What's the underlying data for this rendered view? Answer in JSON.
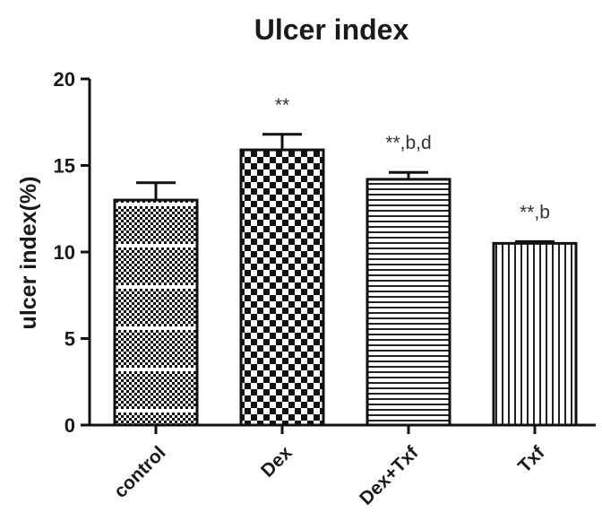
{
  "chart_data": {
    "type": "bar",
    "title": "Ulcer index",
    "ylabel": "ulcer index(%)",
    "xlabel": "",
    "ylim": [
      0,
      20
    ],
    "yticks": [
      0,
      5,
      10,
      15,
      20
    ],
    "grid": false,
    "categories": [
      "control",
      "Dex",
      "Dex+Txf",
      "Txf"
    ],
    "values": [
      13.0,
      15.9,
      14.2,
      10.5
    ],
    "errors": [
      1.0,
      0.9,
      0.4,
      0.1
    ],
    "annotations": [
      "",
      "**",
      "**,b,d",
      "**,b"
    ],
    "patterns": [
      "fine-checker-with-white-lines",
      "large-checker",
      "horizontal-lines",
      "vertical-lines"
    ]
  }
}
